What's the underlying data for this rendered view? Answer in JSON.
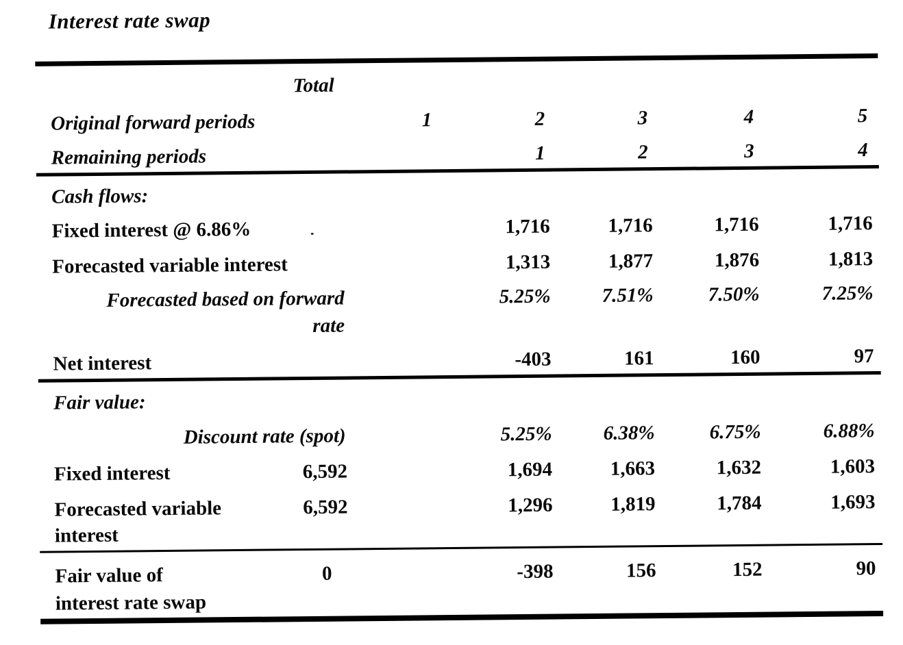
{
  "title": "Interest rate swap",
  "table": {
    "header": {
      "total": "Total",
      "original_forward_periods": {
        "label": "Original forward periods",
        "p1": "1",
        "p2": "2",
        "p3": "3",
        "p4": "4",
        "p5": "5"
      },
      "remaining_periods": {
        "label": "Remaining periods",
        "p2": "1",
        "p3": "2",
        "p4": "3",
        "p5": "4"
      }
    },
    "cash_flows": {
      "heading": "Cash flows:",
      "fixed_interest": {
        "label": "Fixed interest @ 6.86%",
        "p2": "1,716",
        "p3": "1,716",
        "p4": "1,716",
        "p5": "1,716"
      },
      "forecasted_variable_interest": {
        "label": "Forecasted variable interest",
        "p2": "1,313",
        "p3": "1,877",
        "p4": "1,876",
        "p5": "1,813"
      },
      "forward_rate": {
        "label": "Forecasted based on forward",
        "label_cont": "rate",
        "p2": "5.25%",
        "p3": "7.51%",
        "p4": "7.50%",
        "p5": "7.25%"
      },
      "net_interest": {
        "label": "Net interest",
        "p2": "-403",
        "p3": "161",
        "p4": "160",
        "p5": "97"
      }
    },
    "fair_value": {
      "heading": "Fair value:",
      "discount_rate": {
        "label": "Discount rate (spot)",
        "p2": "5.25%",
        "p3": "6.38%",
        "p4": "6.75%",
        "p5": "6.88%"
      },
      "fixed_interest": {
        "label": "Fixed interest",
        "total": "6,592",
        "p2": "1,694",
        "p3": "1,663",
        "p4": "1,632",
        "p5": "1,603"
      },
      "forecasted_variable_interest": {
        "label": "Forecasted variable",
        "label_cont": "interest",
        "total": "6,592",
        "p2": "1,296",
        "p3": "1,819",
        "p4": "1,784",
        "p5": "1,693"
      },
      "swap": {
        "label": "Fair value of",
        "label_cont": "interest rate swap",
        "total": "0",
        "p2": "-398",
        "p3": "156",
        "p4": "152",
        "p5": "90"
      }
    }
  }
}
